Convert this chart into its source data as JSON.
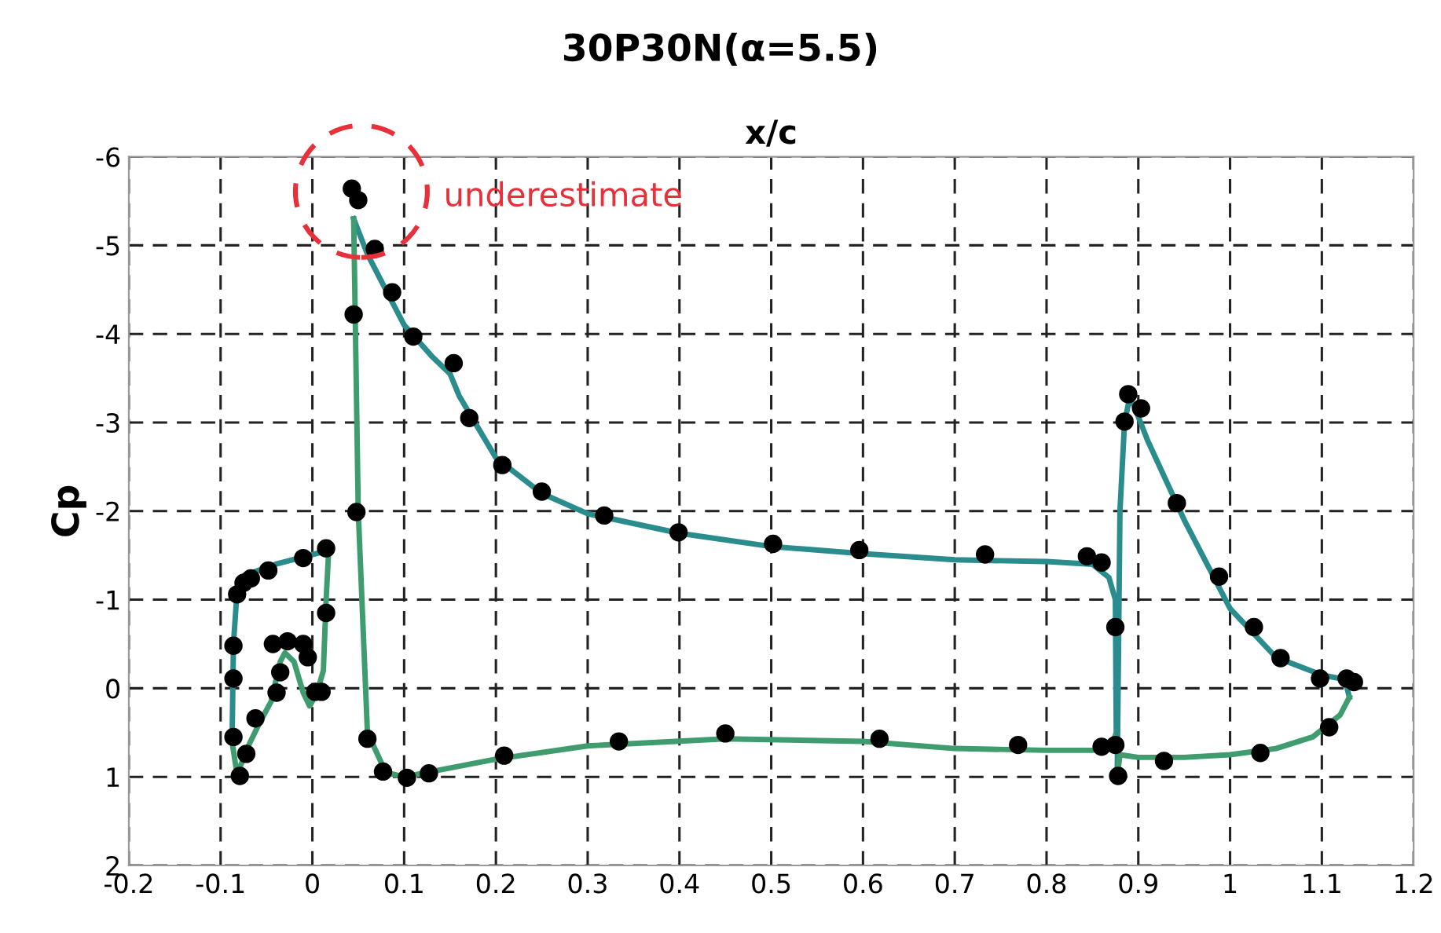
{
  "chart_data": {
    "type": "line",
    "title": "30P30N(α=5.5)",
    "xlabel": "x/c",
    "ylabel": "Cp",
    "xlim": [
      -0.2,
      1.2
    ],
    "xticks": [
      -0.2,
      -0.1,
      0,
      0.1,
      0.2,
      0.3,
      0.4,
      0.5,
      0.6,
      0.7,
      0.8,
      0.9,
      1,
      1.1,
      1.2
    ],
    "ylim": [
      2,
      -6
    ],
    "yticks": [
      -6,
      -5,
      -4,
      -3,
      -2,
      -1,
      0,
      1,
      2
    ],
    "grid": true,
    "legend": false,
    "annotations": [
      "underestimate"
    ],
    "series": [
      {
        "color": "#2a8c8c",
        "line_style": "solid",
        "marker": "none",
        "x": [
          -0.0875,
          -0.086,
          -0.082,
          -0.075,
          -0.04,
          0.015,
          0.018
        ],
        "values": [
          0.6,
          -0.5,
          -1.1,
          -1.27,
          -1.4,
          -1.55,
          -1.6
        ]
      },
      {
        "color": "#3f9c6e",
        "line_style": "solid",
        "marker": "none",
        "x": [
          -0.0875,
          -0.082,
          -0.072,
          -0.058,
          -0.045,
          -0.035,
          -0.03,
          -0.02,
          -0.01,
          -0.003,
          0.005,
          0.012,
          0.015,
          0.018
        ],
        "values": [
          0.6,
          0.98,
          0.7,
          0.4,
          0.15,
          -0.3,
          -0.4,
          -0.3,
          0.05,
          0.2,
          0.05,
          -0.2,
          -1.0,
          -1.6
        ]
      },
      {
        "color": "#2a8c8c",
        "line_style": "solid",
        "marker": "none",
        "x": [
          0.045,
          0.06,
          0.08,
          0.1,
          0.13,
          0.15,
          0.16,
          0.18,
          0.2,
          0.25,
          0.3,
          0.4,
          0.5,
          0.6,
          0.7,
          0.8,
          0.85,
          0.868,
          0.875,
          0.876
        ],
        "values": [
          -5.3,
          -4.9,
          -4.5,
          -4.1,
          -3.75,
          -3.55,
          -3.3,
          -2.95,
          -2.6,
          -2.2,
          -1.97,
          -1.75,
          -1.6,
          -1.52,
          -1.45,
          -1.43,
          -1.4,
          -1.25,
          -1.0,
          0.5
        ]
      },
      {
        "color": "#3f9c6e",
        "line_style": "solid",
        "marker": "none",
        "x": [
          0.045,
          0.047,
          0.05,
          0.06,
          0.08,
          0.1,
          0.2,
          0.3,
          0.45,
          0.6,
          0.7,
          0.8,
          0.85,
          0.87,
          0.876
        ],
        "values": [
          -5.3,
          -4.0,
          -2.0,
          0.5,
          0.95,
          1.0,
          0.8,
          0.65,
          0.57,
          0.6,
          0.68,
          0.7,
          0.7,
          0.68,
          0.5
        ]
      },
      {
        "color": "#2a8c8c",
        "line_style": "solid",
        "marker": "none",
        "x": [
          0.877,
          0.878,
          0.879,
          0.88,
          0.885,
          0.89,
          0.895,
          0.91,
          0.95,
          1.0,
          1.05,
          1.1,
          1.125,
          1.13
        ],
        "values": [
          1.0,
          0.0,
          -1.0,
          -2.0,
          -3.0,
          -3.25,
          -3.2,
          -2.8,
          -1.9,
          -0.9,
          -0.35,
          -0.15,
          -0.1,
          0.1
        ]
      },
      {
        "color": "#3f9c6e",
        "line_style": "solid",
        "marker": "none",
        "x": [
          0.877,
          0.88,
          0.9,
          0.95,
          1.0,
          1.05,
          1.09,
          1.12,
          1.13
        ],
        "values": [
          1.0,
          0.75,
          0.78,
          0.78,
          0.75,
          0.68,
          0.55,
          0.3,
          0.1
        ]
      },
      {
        "type": "scatter",
        "color": "#000000",
        "marker": "circle",
        "x": [
          -0.086,
          -0.086,
          -0.086,
          -0.079,
          -0.072,
          -0.062,
          -0.039,
          -0.035,
          -0.043,
          -0.027,
          -0.01,
          -0.005,
          0.003,
          0.01,
          0.015,
          0.015,
          -0.01,
          -0.048,
          -0.067,
          -0.075,
          -0.082,
          0.043,
          0.05,
          0.068,
          0.087,
          0.11,
          0.154,
          0.171,
          0.207,
          0.25,
          0.318,
          0.399,
          0.502,
          0.596,
          0.733,
          0.844,
          0.86,
          0.045,
          0.048,
          0.06,
          0.077,
          0.103,
          0.127,
          0.209,
          0.334,
          0.45,
          0.618,
          0.769,
          0.86,
          0.875,
          0.878,
          0.875,
          0.889,
          0.903,
          0.885,
          0.942,
          0.988,
          1.026,
          1.055,
          1.098,
          1.127,
          1.135,
          1.108,
          0.928,
          1.033
        ],
        "values": [
          -0.48,
          -0.11,
          0.55,
          0.99,
          0.74,
          0.34,
          0.05,
          -0.18,
          -0.5,
          -0.53,
          -0.5,
          -0.35,
          0.04,
          0.04,
          -0.85,
          -1.58,
          -1.47,
          -1.33,
          -1.24,
          -1.19,
          -1.06,
          -5.64,
          -5.51,
          -4.96,
          -4.47,
          -3.97,
          -3.67,
          -3.05,
          -2.52,
          -2.22,
          -1.95,
          -1.76,
          -1.63,
          -1.56,
          -1.51,
          -1.49,
          -1.42,
          -4.22,
          -1.99,
          0.57,
          0.94,
          1.01,
          0.96,
          0.76,
          0.6,
          0.51,
          0.57,
          0.64,
          0.66,
          0.64,
          0.99,
          -0.69,
          -3.32,
          -3.16,
          -3.01,
          -2.09,
          -1.26,
          -0.69,
          -0.34,
          -0.11,
          -0.11,
          -0.07,
          0.44,
          0.82,
          0.73
        ]
      }
    ]
  }
}
